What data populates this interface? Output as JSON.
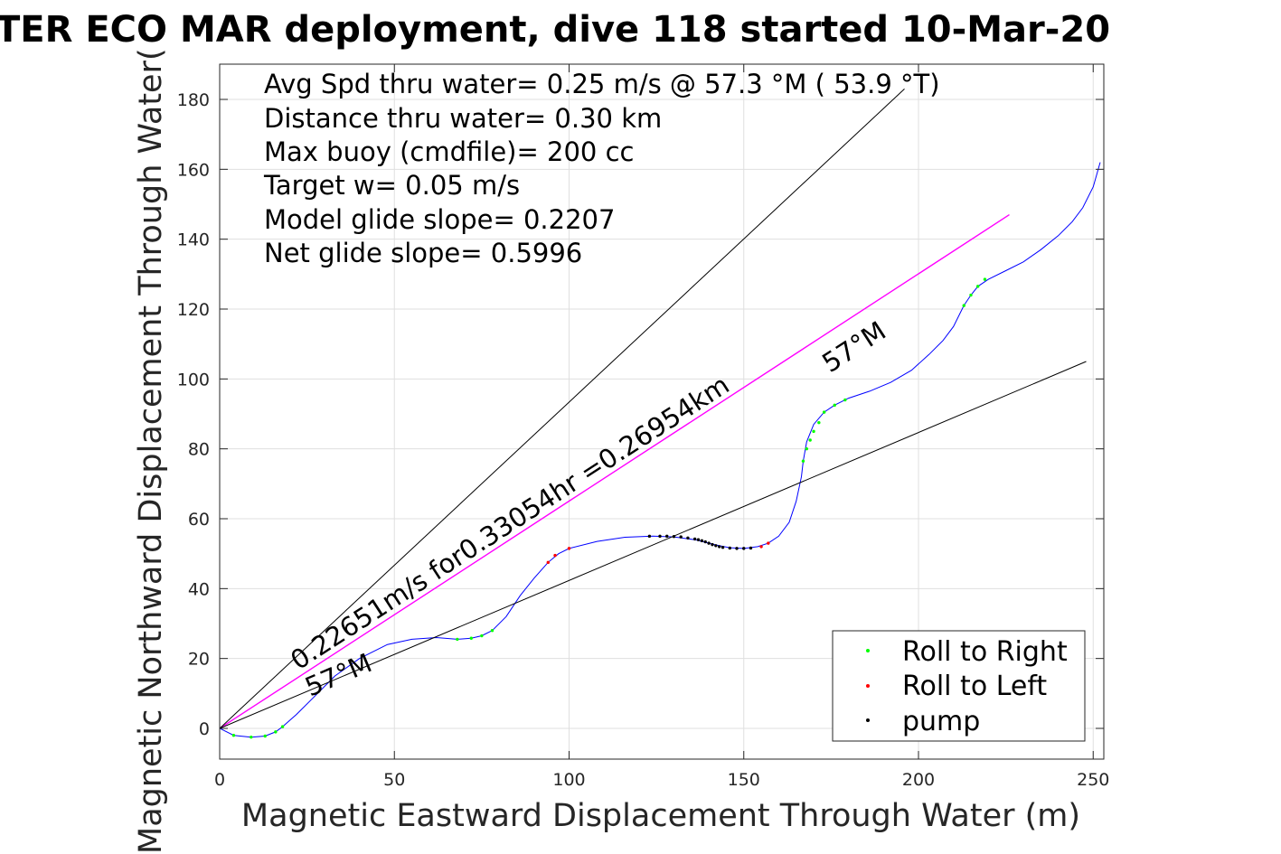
{
  "chart_data": {
    "type": "line",
    "title": "TER ECO MAR deployment, dive 118 started 10-Mar-20",
    "xlabel": "Magnetic Eastward Displacement Through Water (m)",
    "ylabel": "Magnetic Northward Displacement Through Water(",
    "xlim": [
      0,
      252
    ],
    "ylim": [
      -9,
      190
    ],
    "xticks": [
      0,
      50,
      100,
      150,
      200,
      250
    ],
    "yticks": [
      0,
      20,
      40,
      60,
      80,
      100,
      120,
      140,
      160,
      180
    ],
    "grid": true,
    "legend_placement": "bottom-right",
    "stats": [
      "Avg Spd thru water=  0.25 m/s @  57.3 °M ( 53.9 °T)",
      "Distance thru water=  0.30 km",
      "Max buoy (cmdfile)= 200 cc",
      "Target w= 0.05 m/s",
      "Model glide slope= 0.2207",
      "Net glide slope= 0.5996"
    ],
    "annotations": {
      "net": "0.22651m/s for0.33054hr =0.26954km",
      "heading_upper": "57°M",
      "heading_lower": "57°M"
    },
    "legend": [
      {
        "label": "Roll to Right",
        "color": "#00ff00"
      },
      {
        "label": "Roll to Left",
        "color": "#ff0000"
      },
      {
        "label": "pump",
        "color": "#000000"
      }
    ],
    "series": [
      {
        "color": "#0000ff",
        "x": [
          0,
          4,
          9,
          13,
          16,
          18,
          22,
          27,
          33,
          40,
          48,
          55,
          62,
          68,
          72,
          75,
          78,
          82,
          86,
          90,
          94,
          97,
          100,
          108,
          116,
          124,
          130,
          136,
          142,
          146,
          150,
          154,
          157,
          160,
          163,
          165,
          166.5,
          167,
          168,
          170,
          173,
          176,
          180,
          186,
          192,
          198,
          203,
          207,
          210,
          213,
          215,
          217,
          220,
          225,
          230,
          235,
          240,
          244,
          247,
          250,
          252
        ],
        "y": [
          0,
          -2,
          -2.5,
          -2.2,
          -1,
          0.5,
          4,
          9,
          15,
          20,
          24,
          25.5,
          26,
          25.5,
          25.8,
          26.5,
          28,
          32,
          38,
          43,
          47.5,
          50,
          51.5,
          53.5,
          54.7,
          55,
          54.8,
          54,
          52.5,
          51.7,
          51.5,
          52,
          53,
          55,
          59,
          65,
          72,
          76.5,
          82,
          87,
          90.5,
          92.5,
          94.5,
          96.5,
          99,
          102.5,
          107,
          111,
          115,
          121,
          124,
          126.5,
          128.5,
          131,
          133.5,
          137,
          141,
          145,
          149,
          155,
          162
        ]
      },
      {
        "color": "#ff00ff",
        "x": [
          0,
          226
        ],
        "y": [
          0,
          147
        ]
      },
      {
        "color": "#000000",
        "x": [
          0,
          196
        ],
        "y": [
          0,
          183
        ]
      },
      {
        "color": "#000000",
        "x": [
          0,
          248
        ],
        "y": [
          0,
          105
        ]
      }
    ],
    "markers": {
      "roll_right": {
        "color": "#00ff00",
        "x": [
          4,
          9,
          13,
          16,
          18,
          68,
          72,
          75,
          78,
          167,
          168,
          169,
          170,
          171.5,
          173,
          176,
          179,
          213,
          215,
          217,
          219
        ],
        "y": [
          -2,
          -2.5,
          -2.2,
          -1,
          0.5,
          25.5,
          25.8,
          26.5,
          28,
          76.5,
          80,
          82.5,
          85,
          87.5,
          90.5,
          92.5,
          94,
          121,
          124,
          126.5,
          128.5
        ]
      },
      "roll_left": {
        "color": "#ff0000",
        "x": [
          94,
          96,
          100,
          155,
          157
        ],
        "y": [
          47.5,
          49.5,
          51.5,
          52,
          53
        ]
      },
      "pump": {
        "color": "#000000",
        "x": [
          123,
          126,
          128,
          130,
          132,
          134,
          136,
          137,
          138,
          139,
          140,
          141,
          142,
          143,
          144,
          146,
          148,
          150,
          152
        ],
        "y": [
          55,
          55,
          55,
          54.9,
          54.8,
          54.5,
          54.2,
          54,
          53.7,
          53.4,
          53,
          52.6,
          52.3,
          52,
          51.8,
          51.6,
          51.5,
          51.5,
          51.6
        ]
      }
    }
  }
}
